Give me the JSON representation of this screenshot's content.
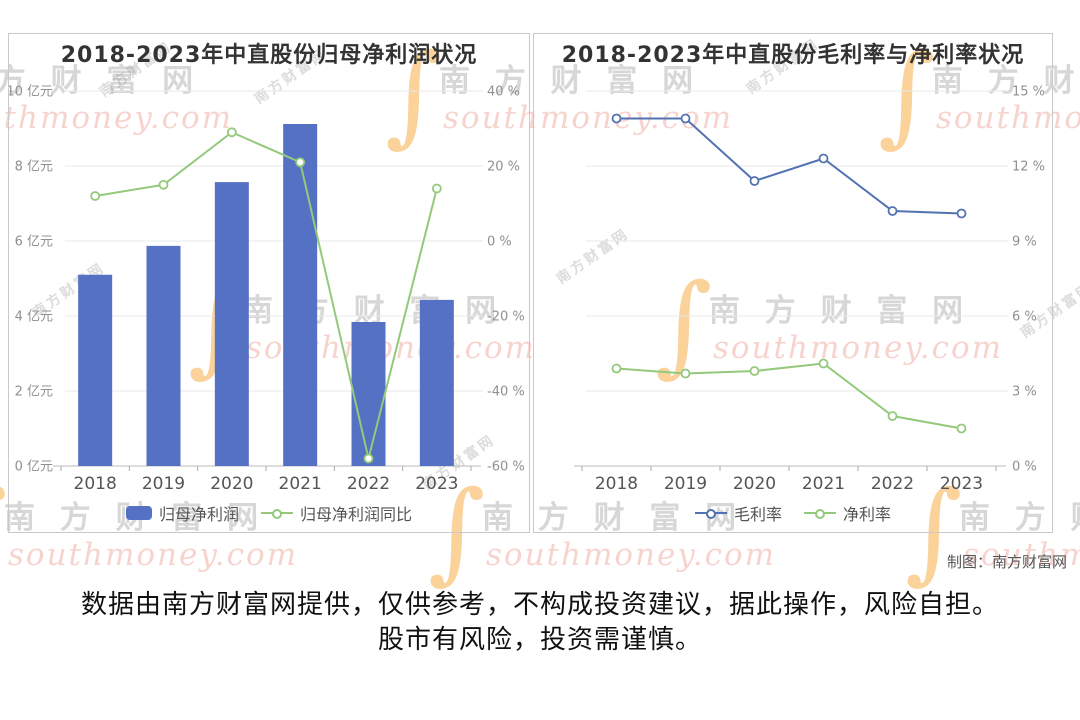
{
  "watermark": {
    "brand_cn": "南方财富网",
    "brand_cn_spaced": "南 方 财 富 网",
    "brand_en": "southmoney.com",
    "s_glyph": "∫"
  },
  "footer": {
    "credit": "制图：南方财富网",
    "disclaimer_line1": "数据由南方财富网提供，仅供参考，不构成投资建议，据此操作，风险自担。",
    "disclaimer_line2": "股市有风险，投资需谨慎。"
  },
  "chart_data": [
    {
      "type": "bar",
      "title": "2018-2023年中直股份归母净利润状况",
      "categories": [
        "2018",
        "2019",
        "2020",
        "2021",
        "2022",
        "2023"
      ],
      "series": [
        {
          "name": "归母净利润",
          "chart": "bar",
          "axis": "left",
          "unit": "亿元",
          "color": "#5571C4",
          "values": [
            5.1,
            5.87,
            7.57,
            9.12,
            3.84,
            4.43
          ]
        },
        {
          "name": "归母净利润同比",
          "chart": "line",
          "axis": "right",
          "unit": "%",
          "color": "#94C97B",
          "values": [
            12,
            15,
            29,
            21,
            -58,
            14
          ]
        }
      ],
      "y_left": {
        "min": 0,
        "max": 10,
        "ticks": [
          "0 亿元",
          "2 亿元",
          "4 亿元",
          "6 亿元",
          "8 亿元",
          "10 亿元"
        ]
      },
      "y_right": {
        "min": -60,
        "max": 40,
        "ticks": [
          "-60 %",
          "-40 %",
          "-20 %",
          "0 %",
          "20 %",
          "40 %"
        ]
      },
      "grid": true,
      "legend_position": "bottom"
    },
    {
      "type": "line",
      "title": "2018-2023年中直股份毛利率与净利率状况",
      "categories": [
        "2018",
        "2019",
        "2020",
        "2021",
        "2022",
        "2023"
      ],
      "series": [
        {
          "name": "毛利率",
          "chart": "line",
          "axis": "right",
          "unit": "%",
          "color": "#5272B2",
          "values": [
            13.9,
            13.9,
            11.4,
            12.3,
            10.2,
            10.1
          ]
        },
        {
          "name": "净利率",
          "chart": "line",
          "axis": "right",
          "unit": "%",
          "color": "#94C97B",
          "values": [
            3.9,
            3.7,
            3.8,
            4.1,
            2.0,
            1.5
          ]
        }
      ],
      "y_right": {
        "min": 0,
        "max": 15,
        "ticks": [
          "0 %",
          "3 %",
          "6 %",
          "9 %",
          "12 %",
          "15 %"
        ]
      },
      "grid": true,
      "legend_position": "bottom"
    }
  ]
}
